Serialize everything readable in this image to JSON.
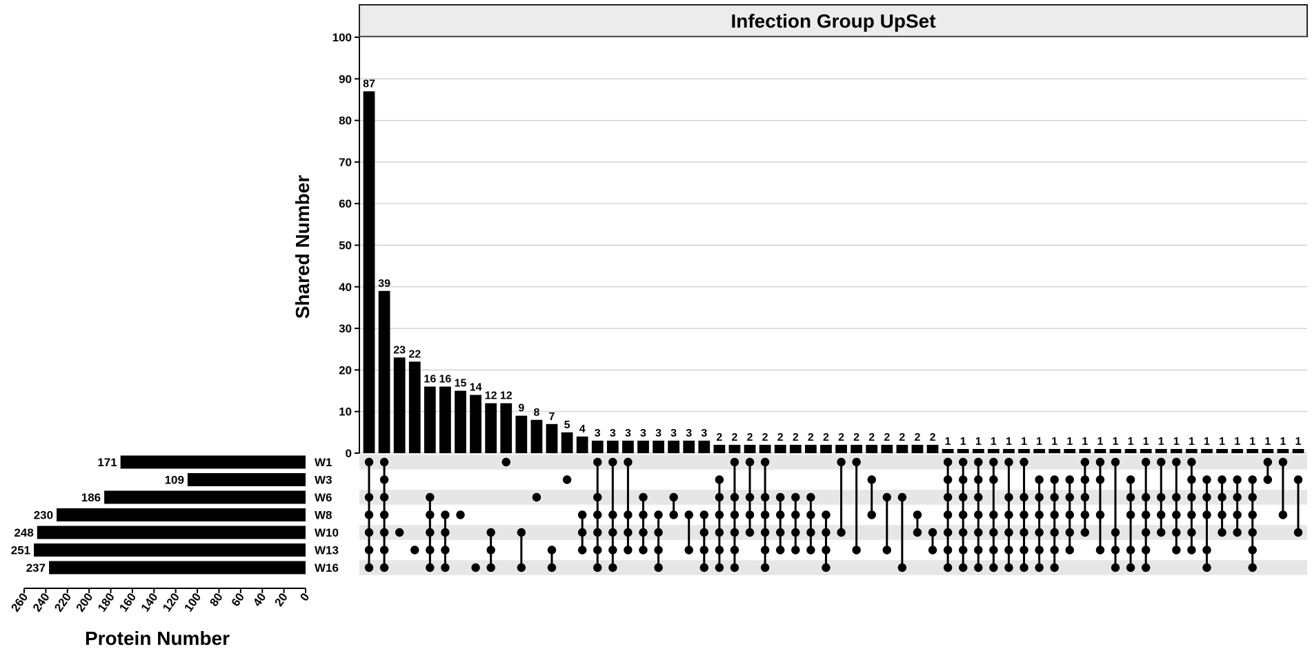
{
  "chart_data": {
    "type": "upset",
    "title": "Infection Group UpSet",
    "ylabel": "Shared Number",
    "xlabel_sets": "Protein Number",
    "ylim": [
      0,
      100
    ],
    "yticks": [
      0,
      10,
      20,
      30,
      40,
      50,
      60,
      70,
      80,
      90,
      100
    ],
    "set_axis_ticks": [
      260,
      240,
      220,
      200,
      180,
      160,
      140,
      120,
      100,
      80,
      60,
      40,
      20,
      0
    ],
    "set_axis_max": 260,
    "sets": [
      {
        "name": "W1",
        "size": 171
      },
      {
        "name": "W3",
        "size": 109
      },
      {
        "name": "W6",
        "size": 186
      },
      {
        "name": "W8",
        "size": 230
      },
      {
        "name": "W10",
        "size": 248
      },
      {
        "name": "W13",
        "size": 251
      },
      {
        "name": "W16",
        "size": 237
      }
    ],
    "intersections": [
      {
        "value": 87,
        "sets": [
          "W1",
          "W6",
          "W8",
          "W10",
          "W13",
          "W16"
        ]
      },
      {
        "value": 39,
        "sets": [
          "W1",
          "W3",
          "W6",
          "W8",
          "W10",
          "W13",
          "W16"
        ]
      },
      {
        "value": 23,
        "sets": [
          "W10"
        ]
      },
      {
        "value": 22,
        "sets": [
          "W13"
        ]
      },
      {
        "value": 16,
        "sets": [
          "W6",
          "W8",
          "W10",
          "W13",
          "W16"
        ]
      },
      {
        "value": 16,
        "sets": [
          "W8",
          "W10",
          "W13",
          "W16"
        ]
      },
      {
        "value": 15,
        "sets": [
          "W8"
        ]
      },
      {
        "value": 14,
        "sets": [
          "W16"
        ]
      },
      {
        "value": 12,
        "sets": [
          "W10",
          "W13",
          "W16"
        ]
      },
      {
        "value": 12,
        "sets": [
          "W1"
        ]
      },
      {
        "value": 9,
        "sets": [
          "W10",
          "W16"
        ]
      },
      {
        "value": 8,
        "sets": [
          "W6"
        ]
      },
      {
        "value": 7,
        "sets": [
          "W13",
          "W16"
        ]
      },
      {
        "value": 5,
        "sets": [
          "W3"
        ]
      },
      {
        "value": 4,
        "sets": [
          "W8",
          "W10",
          "W13"
        ]
      },
      {
        "value": 3,
        "sets": [
          "W1",
          "W6",
          "W8",
          "W10",
          "W13",
          "W16"
        ]
      },
      {
        "value": 3,
        "sets": [
          "W1",
          "W8",
          "W10",
          "W13",
          "W16"
        ]
      },
      {
        "value": 3,
        "sets": [
          "W1",
          "W8",
          "W10",
          "W13"
        ]
      },
      {
        "value": 3,
        "sets": [
          "W6",
          "W8",
          "W10",
          "W13"
        ]
      },
      {
        "value": 3,
        "sets": [
          "W8",
          "W10",
          "W13",
          "W16"
        ]
      },
      {
        "value": 3,
        "sets": [
          "W6",
          "W8"
        ]
      },
      {
        "value": 3,
        "sets": [
          "W8",
          "W13"
        ]
      },
      {
        "value": 3,
        "sets": [
          "W8",
          "W10",
          "W13",
          "W16"
        ]
      },
      {
        "value": 2,
        "sets": [
          "W3",
          "W6",
          "W8",
          "W10",
          "W13",
          "W16"
        ]
      },
      {
        "value": 2,
        "sets": [
          "W1",
          "W6",
          "W8",
          "W10",
          "W13",
          "W16"
        ]
      },
      {
        "value": 2,
        "sets": [
          "W1",
          "W6",
          "W8",
          "W10"
        ]
      },
      {
        "value": 2,
        "sets": [
          "W1",
          "W6",
          "W8",
          "W10",
          "W13",
          "W16"
        ]
      },
      {
        "value": 2,
        "sets": [
          "W6",
          "W8",
          "W10",
          "W13"
        ]
      },
      {
        "value": 2,
        "sets": [
          "W6",
          "W8",
          "W10",
          "W13"
        ]
      },
      {
        "value": 2,
        "sets": [
          "W6",
          "W8",
          "W10",
          "W13"
        ]
      },
      {
        "value": 2,
        "sets": [
          "W8",
          "W10",
          "W13",
          "W16"
        ]
      },
      {
        "value": 2,
        "sets": [
          "W1",
          "W10"
        ]
      },
      {
        "value": 2,
        "sets": [
          "W1",
          "W13"
        ]
      },
      {
        "value": 2,
        "sets": [
          "W3",
          "W8"
        ]
      },
      {
        "value": 2,
        "sets": [
          "W6",
          "W13"
        ]
      },
      {
        "value": 2,
        "sets": [
          "W6",
          "W16"
        ]
      },
      {
        "value": 2,
        "sets": [
          "W8",
          "W10"
        ]
      },
      {
        "value": 2,
        "sets": [
          "W10",
          "W13"
        ]
      },
      {
        "value": 1,
        "sets": [
          "W1",
          "W3",
          "W6",
          "W8",
          "W10",
          "W13",
          "W16"
        ]
      },
      {
        "value": 1,
        "sets": [
          "W1",
          "W3",
          "W6",
          "W8",
          "W10",
          "W13",
          "W16"
        ]
      },
      {
        "value": 1,
        "sets": [
          "W1",
          "W3",
          "W6",
          "W8",
          "W10",
          "W13",
          "W16"
        ]
      },
      {
        "value": 1,
        "sets": [
          "W1",
          "W3",
          "W8",
          "W10",
          "W13",
          "W16"
        ]
      },
      {
        "value": 1,
        "sets": [
          "W1",
          "W6",
          "W8",
          "W10",
          "W13",
          "W16"
        ]
      },
      {
        "value": 1,
        "sets": [
          "W1",
          "W6",
          "W8",
          "W10",
          "W13",
          "W16"
        ]
      },
      {
        "value": 1,
        "sets": [
          "W3",
          "W6",
          "W8",
          "W10",
          "W13",
          "W16"
        ]
      },
      {
        "value": 1,
        "sets": [
          "W3",
          "W6",
          "W8",
          "W10",
          "W13",
          "W16"
        ]
      },
      {
        "value": 1,
        "sets": [
          "W3",
          "W6",
          "W8",
          "W10",
          "W13"
        ]
      },
      {
        "value": 1,
        "sets": [
          "W1",
          "W3",
          "W6",
          "W8",
          "W10"
        ]
      },
      {
        "value": 1,
        "sets": [
          "W1",
          "W3",
          "W8",
          "W13"
        ]
      },
      {
        "value": 1,
        "sets": [
          "W1",
          "W10",
          "W13",
          "W16"
        ]
      },
      {
        "value": 1,
        "sets": [
          "W3",
          "W6",
          "W8",
          "W13",
          "W16"
        ]
      },
      {
        "value": 1,
        "sets": [
          "W1",
          "W6",
          "W8",
          "W10",
          "W13",
          "W16"
        ]
      },
      {
        "value": 1,
        "sets": [
          "W1",
          "W6",
          "W8",
          "W10"
        ]
      },
      {
        "value": 1,
        "sets": [
          "W1",
          "W6",
          "W8",
          "W10",
          "W13"
        ]
      },
      {
        "value": 1,
        "sets": [
          "W1",
          "W3",
          "W6",
          "W8",
          "W10",
          "W13"
        ]
      },
      {
        "value": 1,
        "sets": [
          "W3",
          "W6",
          "W8",
          "W13",
          "W16"
        ]
      },
      {
        "value": 1,
        "sets": [
          "W3",
          "W6",
          "W8",
          "W10"
        ]
      },
      {
        "value": 1,
        "sets": [
          "W3",
          "W6",
          "W8",
          "W10"
        ]
      },
      {
        "value": 1,
        "sets": [
          "W3",
          "W6",
          "W8",
          "W10",
          "W13",
          "W16"
        ]
      },
      {
        "value": 1,
        "sets": [
          "W1",
          "W3"
        ]
      },
      {
        "value": 1,
        "sets": [
          "W1",
          "W8"
        ]
      },
      {
        "value": 1,
        "sets": [
          "W3",
          "W10"
        ]
      }
    ]
  }
}
